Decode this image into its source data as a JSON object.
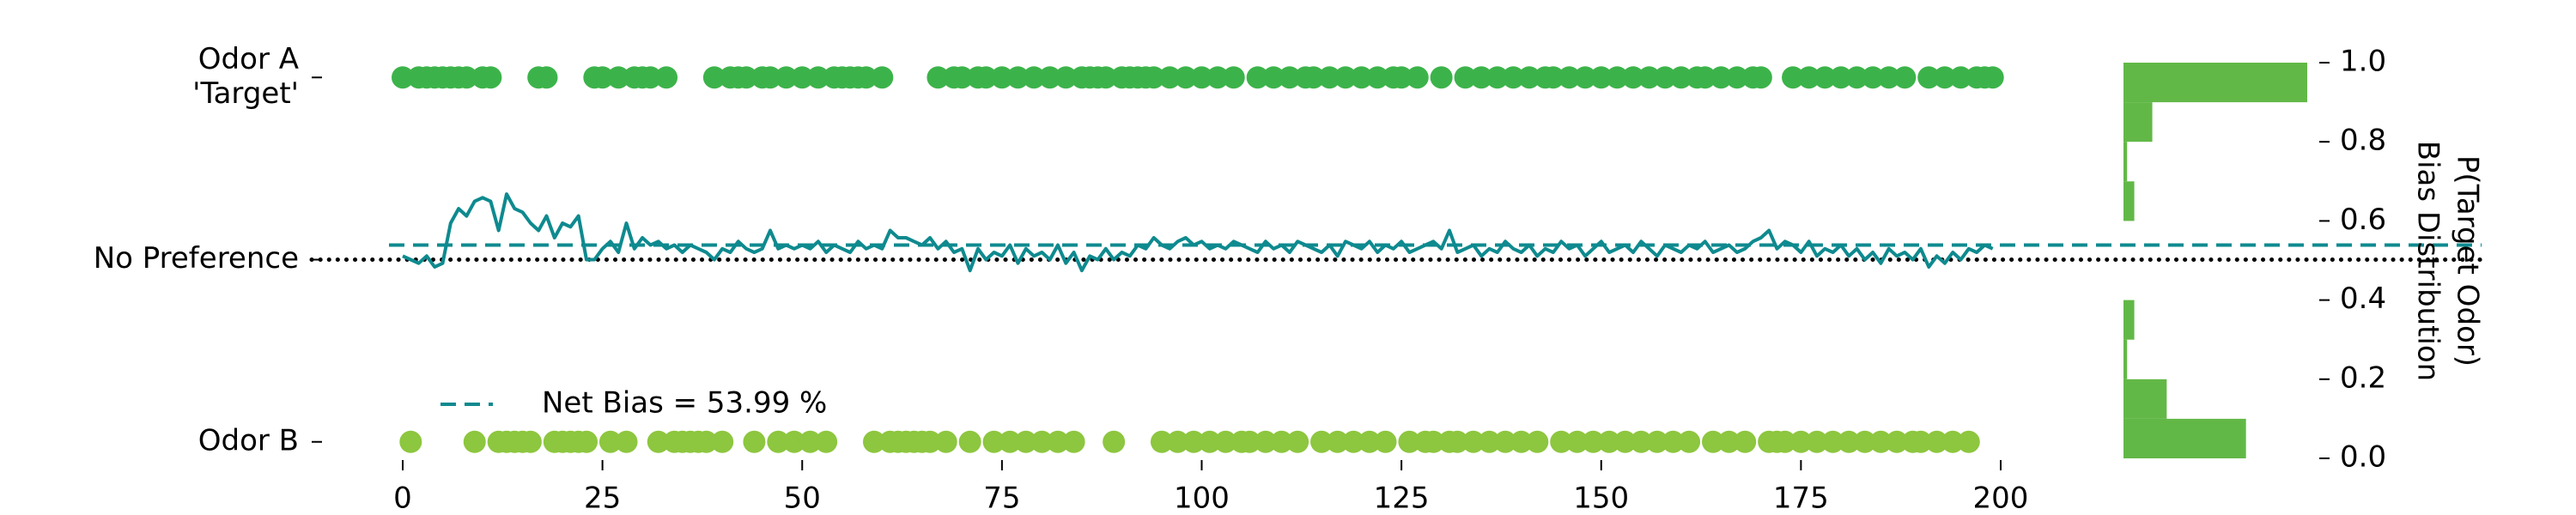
{
  "chart_data": [
    {
      "type": "line",
      "x": [
        0,
        1,
        2,
        3,
        4,
        5,
        6,
        7,
        8,
        9,
        10,
        11,
        12,
        13,
        14,
        15,
        16,
        17,
        18,
        19,
        20,
        21,
        22,
        23,
        24,
        25,
        26,
        27,
        28,
        29,
        30,
        31,
        32,
        33,
        34,
        35,
        36,
        37,
        38,
        39,
        40,
        41,
        42,
        43,
        44,
        45,
        46,
        47,
        48,
        49,
        50,
        51,
        52,
        53,
        54,
        55,
        56,
        57,
        58,
        59,
        60,
        61,
        62,
        63,
        64,
        65,
        66,
        67,
        68,
        69,
        70,
        71,
        72,
        73,
        74,
        75,
        76,
        77,
        78,
        79,
        80,
        81,
        82,
        83,
        84,
        85,
        86,
        87,
        88,
        89,
        90,
        91,
        92,
        93,
        94,
        95,
        96,
        97,
        98,
        99,
        100,
        101,
        102,
        103,
        104,
        105,
        106,
        107,
        108,
        109,
        110,
        111,
        112,
        113,
        114,
        115,
        116,
        117,
        118,
        119,
        120,
        121,
        122,
        123,
        124,
        125,
        126,
        127,
        128,
        129,
        130,
        131,
        132,
        133,
        134,
        135,
        136,
        137,
        138,
        139,
        140,
        141,
        142,
        143,
        144,
        145,
        146,
        147,
        148,
        149,
        150,
        151,
        152,
        153,
        154,
        155,
        156,
        157,
        158,
        159,
        160,
        161,
        162,
        163,
        164,
        165,
        166,
        167,
        168,
        169,
        170,
        171,
        172,
        173,
        174,
        175,
        176,
        177,
        178,
        179,
        180,
        181,
        182,
        183,
        184,
        185,
        186,
        187,
        188,
        189,
        190,
        191,
        192,
        193,
        194,
        195,
        196,
        197,
        198,
        199
      ],
      "xlim": [
        0,
        200
      ],
      "xticks": [
        0,
        25,
        50,
        75,
        100,
        125,
        150,
        175,
        200
      ],
      "ylim": [
        -0.05,
        1.05
      ],
      "yticks": [
        {
          "value": 1,
          "label": "Odor A\n'Target'"
        },
        {
          "value": 0.5,
          "label": "No Preference"
        },
        {
          "value": 0,
          "label": "Odor B"
        }
      ],
      "ytick_colors": [
        "#1a9e66",
        "#000000",
        "#000000"
      ],
      "series": [
        {
          "type": "scatter",
          "color": "#3cb34a",
          "values": [
            1,
            null,
            1,
            1,
            1,
            1,
            1,
            1,
            1,
            null,
            1,
            1,
            null,
            null,
            null,
            null,
            null,
            1,
            1,
            null,
            null,
            null,
            null,
            null,
            1,
            1,
            null,
            1,
            null,
            1,
            1,
            1,
            null,
            1,
            null,
            null,
            null,
            null,
            null,
            1,
            null,
            1,
            1,
            1,
            null,
            1,
            1,
            null,
            1,
            null,
            1,
            null,
            1,
            null,
            1,
            1,
            1,
            1,
            1,
            null,
            1,
            null,
            null,
            null,
            null,
            null,
            null,
            1,
            null,
            1,
            1,
            null,
            1,
            1,
            null,
            1,
            null,
            1,
            null,
            1,
            null,
            1,
            null,
            1,
            null,
            1,
            1,
            1,
            1,
            null,
            1,
            1,
            1,
            1,
            1,
            null,
            1,
            null,
            1,
            null,
            1,
            null,
            1,
            null,
            1,
            null,
            null,
            1,
            null,
            1,
            null,
            1,
            null,
            1,
            1,
            null,
            1,
            null,
            1,
            null,
            1,
            null,
            1,
            null,
            1,
            1,
            null,
            1,
            null,
            null,
            1,
            null,
            null,
            1,
            null,
            1,
            null,
            1,
            null,
            1,
            null,
            1,
            null,
            1,
            1,
            null,
            1,
            null,
            1,
            null,
            1,
            null,
            1,
            null,
            1,
            null,
            1,
            null,
            1,
            null,
            1,
            null,
            1,
            1,
            null,
            1,
            null,
            1,
            null,
            1,
            1,
            null,
            null,
            null,
            1,
            null,
            1,
            null,
            1,
            null,
            1,
            null,
            1,
            null,
            1,
            null,
            1,
            null,
            1,
            null,
            null,
            1,
            null,
            1,
            null,
            1,
            null,
            1,
            1,
            1
          ]
        },
        {
          "type": "scatter",
          "color": "#8dc63f",
          "values": [
            null,
            0,
            null,
            null,
            null,
            null,
            null,
            null,
            null,
            0,
            null,
            null,
            0,
            0,
            0,
            0,
            0,
            null,
            null,
            0,
            0,
            0,
            0,
            0,
            null,
            null,
            0,
            null,
            0,
            null,
            null,
            null,
            0,
            null,
            0,
            0,
            0,
            0,
            0,
            null,
            0,
            null,
            null,
            null,
            0,
            null,
            null,
            0,
            null,
            0,
            null,
            0,
            null,
            0,
            null,
            null,
            null,
            null,
            null,
            0,
            null,
            0,
            0,
            0,
            0,
            0,
            0,
            null,
            0,
            null,
            null,
            0,
            null,
            null,
            0,
            null,
            0,
            null,
            0,
            null,
            0,
            null,
            0,
            null,
            0,
            null,
            null,
            null,
            null,
            0,
            null,
            null,
            null,
            null,
            null,
            0,
            null,
            0,
            null,
            0,
            null,
            0,
            null,
            0,
            null,
            0,
            0,
            null,
            0,
            null,
            0,
            null,
            0,
            null,
            null,
            0,
            null,
            0,
            null,
            0,
            null,
            0,
            null,
            0,
            null,
            null,
            0,
            null,
            0,
            0,
            null,
            0,
            0,
            null,
            0,
            null,
            0,
            null,
            0,
            null,
            0,
            null,
            0,
            null,
            null,
            0,
            null,
            0,
            null,
            0,
            null,
            0,
            null,
            0,
            null,
            0,
            null,
            0,
            null,
            0,
            null,
            0,
            null,
            null,
            0,
            null,
            0,
            null,
            0,
            null,
            null,
            0,
            0,
            0,
            null,
            0,
            null,
            0,
            null,
            0,
            null,
            0,
            null,
            0,
            null,
            0,
            null,
            0,
            null,
            0,
            0,
            null,
            0,
            null,
            0,
            null,
            0,
            null,
            null,
            null
          ]
        },
        {
          "type": "line",
          "color": "#0e8a8f",
          "values": [
            0.51,
            0.5,
            0.49,
            0.51,
            0.48,
            0.49,
            0.6,
            0.64,
            0.62,
            0.66,
            0.67,
            0.66,
            0.58,
            0.68,
            0.64,
            0.63,
            0.6,
            0.58,
            0.62,
            0.56,
            0.6,
            0.59,
            0.62,
            0.5,
            0.5,
            0.53,
            0.55,
            0.52,
            0.6,
            0.53,
            0.56,
            0.54,
            0.55,
            0.53,
            0.54,
            0.52,
            0.54,
            0.53,
            0.52,
            0.5,
            0.53,
            0.52,
            0.55,
            0.53,
            0.52,
            0.53,
            0.58,
            0.53,
            0.54,
            0.53,
            0.54,
            0.53,
            0.55,
            0.52,
            0.54,
            0.53,
            0.52,
            0.55,
            0.53,
            0.54,
            0.53,
            0.58,
            0.56,
            0.56,
            0.55,
            0.54,
            0.56,
            0.53,
            0.55,
            0.52,
            0.53,
            0.47,
            0.53,
            0.5,
            0.52,
            0.51,
            0.54,
            0.49,
            0.53,
            0.51,
            0.52,
            0.5,
            0.54,
            0.49,
            0.52,
            0.47,
            0.51,
            0.5,
            0.53,
            0.5,
            0.52,
            0.51,
            0.54,
            0.53,
            0.56,
            0.54,
            0.53,
            0.55,
            0.56,
            0.54,
            0.55,
            0.53,
            0.54,
            0.53,
            0.55,
            0.54,
            0.53,
            0.52,
            0.55,
            0.53,
            0.54,
            0.52,
            0.55,
            0.54,
            0.53,
            0.52,
            0.54,
            0.51,
            0.55,
            0.54,
            0.53,
            0.55,
            0.52,
            0.54,
            0.53,
            0.55,
            0.52,
            0.53,
            0.54,
            0.55,
            0.53,
            0.58,
            0.52,
            0.53,
            0.54,
            0.51,
            0.53,
            0.52,
            0.55,
            0.53,
            0.52,
            0.54,
            0.51,
            0.53,
            0.52,
            0.55,
            0.53,
            0.54,
            0.51,
            0.53,
            0.55,
            0.52,
            0.53,
            0.54,
            0.52,
            0.55,
            0.53,
            0.51,
            0.54,
            0.53,
            0.52,
            0.54,
            0.53,
            0.55,
            0.52,
            0.53,
            0.54,
            0.52,
            0.53,
            0.55,
            0.56,
            0.58,
            0.53,
            0.55,
            0.54,
            0.52,
            0.55,
            0.51,
            0.53,
            0.52,
            0.54,
            0.51,
            0.53,
            0.5,
            0.52,
            0.49,
            0.53,
            0.51,
            0.52,
            0.5,
            0.53,
            0.48,
            0.51,
            0.49,
            0.52,
            0.5,
            0.53,
            0.52,
            0.54,
            0.53
          ]
        }
      ],
      "hlines": [
        {
          "value": 0.5,
          "color": "#000000",
          "style": "dotted"
        },
        {
          "value": 0.5399,
          "label": "Net Bias = 53.99 %",
          "color": "#0e8a8f",
          "style": "dashed"
        }
      ]
    },
    {
      "type": "histogram",
      "orientation": "horizontal",
      "bins": [
        0,
        0.1,
        0.2,
        0.3,
        0.4,
        0.5,
        0.6,
        0.7,
        0.8,
        0.9,
        1.0
      ],
      "counts": [
        34,
        12,
        1,
        3,
        0,
        0,
        3,
        1,
        8,
        51
      ],
      "color": "#62b847",
      "ylim": [
        0,
        1
      ],
      "yticks": [
        {
          "value": 0,
          "label": "0.0"
        },
        0.2,
        0.4,
        0.6,
        0.8,
        {
          "value": 1,
          "label": "1.0"
        }
      ],
      "ylabel": "P(Target Odor)",
      "ylabel_color": "#128a8f",
      "ylabel2": "Bias Distribution",
      "ylabel2_color": "#6ab84a"
    }
  ]
}
